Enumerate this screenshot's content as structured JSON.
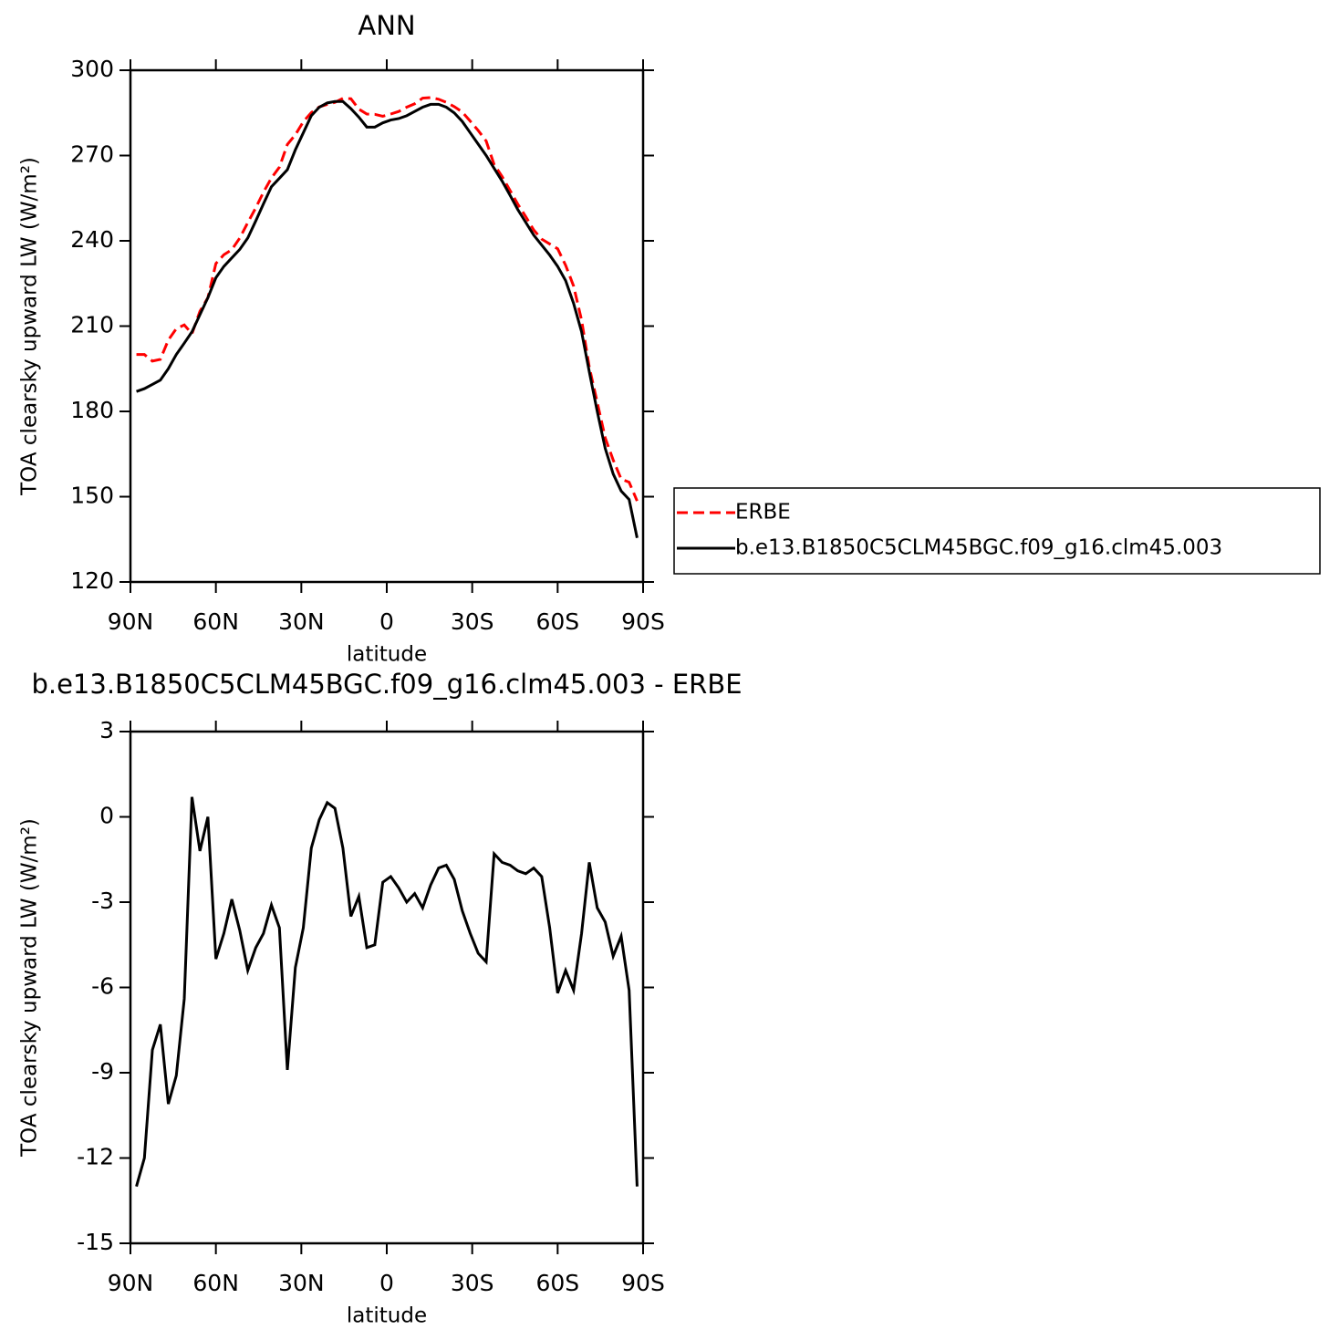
{
  "chart_data": [
    {
      "type": "line",
      "title": "ANN",
      "xlabel": "latitude",
      "ylabel": "TOA clearsky upward LW (W/m²)",
      "x": [
        87.9,
        85.1,
        82.3,
        79.5,
        76.7,
        73.9,
        71.1,
        68.4,
        65.6,
        62.8,
        60.0,
        57.2,
        54.4,
        51.6,
        48.8,
        46.0,
        43.3,
        40.5,
        37.7,
        34.9,
        32.1,
        29.3,
        26.5,
        23.7,
        20.9,
        18.2,
        15.4,
        12.6,
        9.8,
        7.0,
        4.2,
        1.4,
        -1.4,
        -4.2,
        -7.0,
        -9.8,
        -12.6,
        -15.4,
        -18.2,
        -20.9,
        -23.7,
        -26.5,
        -29.3,
        -32.1,
        -34.9,
        -37.7,
        -40.5,
        -43.3,
        -46.0,
        -48.8,
        -51.6,
        -54.4,
        -57.2,
        -60.0,
        -62.8,
        -65.6,
        -68.4,
        -71.1,
        -73.9,
        -76.7,
        -79.5,
        -82.3,
        -85.1,
        -87.9
      ],
      "series": [
        {
          "name": "ERBE",
          "color": "#ff0000",
          "dash": "dashed",
          "values": [
            200,
            200,
            197.7,
            198.3,
            205.1,
            209.1,
            210.4,
            207.3,
            215.2,
            220,
            232,
            235.1,
            236.9,
            241,
            246.4,
            251.6,
            257.1,
            262.1,
            265.9,
            273.9,
            277.3,
            281.9,
            285.1,
            287.1,
            288,
            288.7,
            290.1,
            290,
            286.3,
            284.6,
            284.5,
            283.8,
            284.6,
            285.5,
            287,
            288.2,
            290.2,
            290.4,
            289.8,
            288.7,
            287.2,
            285.3,
            282.1,
            278.8,
            275.1,
            266.8,
            262.6,
            257.7,
            252.9,
            248.5,
            243.8,
            240.6,
            238.9,
            237.2,
            231.4,
            224.1,
            212.1,
            195.6,
            183.2,
            170.7,
            162.9,
            156.2,
            155.1,
            148.5
          ]
        },
        {
          "name": "b.e13.B1850C5CLM45BGC.f09_g16.clm45.003",
          "color": "#000000",
          "dash": "solid",
          "values": [
            187,
            188,
            189.5,
            191,
            195,
            200,
            204,
            208,
            214,
            220,
            227,
            231,
            234,
            237,
            241,
            247,
            253,
            259,
            262,
            265,
            272,
            278,
            284,
            287,
            288.5,
            289,
            289,
            286.5,
            283.5,
            280,
            280,
            281.5,
            282.5,
            283,
            284,
            285.5,
            287,
            288,
            288,
            287,
            285,
            282,
            278,
            274,
            270,
            265.5,
            261,
            256,
            251,
            246.5,
            242,
            238.5,
            235,
            231,
            226,
            218,
            208,
            194,
            180,
            167,
            158,
            152,
            149,
            135.5
          ]
        }
      ],
      "xlim": [
        90,
        -90
      ],
      "xticks": [
        {
          "value": 90,
          "label": "90N"
        },
        {
          "value": 60,
          "label": "60N"
        },
        {
          "value": 30,
          "label": "30N"
        },
        0,
        {
          "value": -30,
          "label": "30S"
        },
        {
          "value": -60,
          "label": "60S"
        },
        {
          "value": -90,
          "label": "90S"
        }
      ],
      "ylim": [
        120,
        300
      ],
      "yticks": [
        120,
        150,
        180,
        210,
        240,
        270,
        300
      ],
      "legend": "right"
    },
    {
      "type": "line",
      "title": "b.e13.B1850C5CLM45BGC.f09_g16.clm45.003 - ERBE",
      "xlabel": "latitude",
      "ylabel": "TOA clearsky upward LW (W/m²)",
      "x": [
        87.9,
        85.1,
        82.3,
        79.5,
        76.7,
        73.9,
        71.1,
        68.4,
        65.6,
        62.8,
        60.0,
        57.2,
        54.4,
        51.6,
        48.8,
        46.0,
        43.3,
        40.5,
        37.7,
        34.9,
        32.1,
        29.3,
        26.5,
        23.7,
        20.9,
        18.2,
        15.4,
        12.6,
        9.8,
        7.0,
        4.2,
        1.4,
        -1.4,
        -4.2,
        -7.0,
        -9.8,
        -12.6,
        -15.4,
        -18.2,
        -20.9,
        -23.7,
        -26.5,
        -29.3,
        -32.1,
        -34.9,
        -37.7,
        -40.5,
        -43.3,
        -46.0,
        -48.8,
        -51.6,
        -54.4,
        -57.2,
        -60.0,
        -62.8,
        -65.6,
        -68.4,
        -71.1,
        -73.9,
        -76.7,
        -79.5,
        -82.3,
        -85.1,
        -87.9
      ],
      "series": [
        {
          "color": "#000000",
          "dash": "solid",
          "values": [
            -13.0,
            -12.0,
            -8.2,
            -7.3,
            -10.1,
            -9.1,
            -6.4,
            0.7,
            -1.2,
            0.0,
            -5.0,
            -4.1,
            -2.9,
            -4.0,
            -5.4,
            -4.6,
            -4.1,
            -3.1,
            -3.9,
            -8.9,
            -5.3,
            -3.9,
            -1.1,
            -0.1,
            0.5,
            0.3,
            -1.1,
            -3.5,
            -2.8,
            -4.6,
            -4.5,
            -2.3,
            -2.1,
            -2.5,
            -3.0,
            -2.7,
            -3.2,
            -2.4,
            -1.8,
            -1.7,
            -2.2,
            -3.3,
            -4.1,
            -4.8,
            -5.1,
            -1.3,
            -1.6,
            -1.7,
            -1.9,
            -2.0,
            -1.8,
            -2.1,
            -3.9,
            -6.2,
            -5.4,
            -6.1,
            -4.1,
            -1.6,
            -3.2,
            -3.7,
            -4.9,
            -4.2,
            -6.1,
            -13.0
          ]
        }
      ],
      "xlim": [
        90,
        -90
      ],
      "xticks": [
        {
          "value": 90,
          "label": "90N"
        },
        {
          "value": 60,
          "label": "60N"
        },
        {
          "value": 30,
          "label": "30N"
        },
        0,
        {
          "value": -30,
          "label": "30S"
        },
        {
          "value": -60,
          "label": "60S"
        },
        {
          "value": -90,
          "label": "90S"
        }
      ],
      "ylim": [
        -15,
        3
      ],
      "yticks": [
        -15,
        -12,
        -9,
        -6,
        -3,
        0,
        3
      ]
    }
  ]
}
